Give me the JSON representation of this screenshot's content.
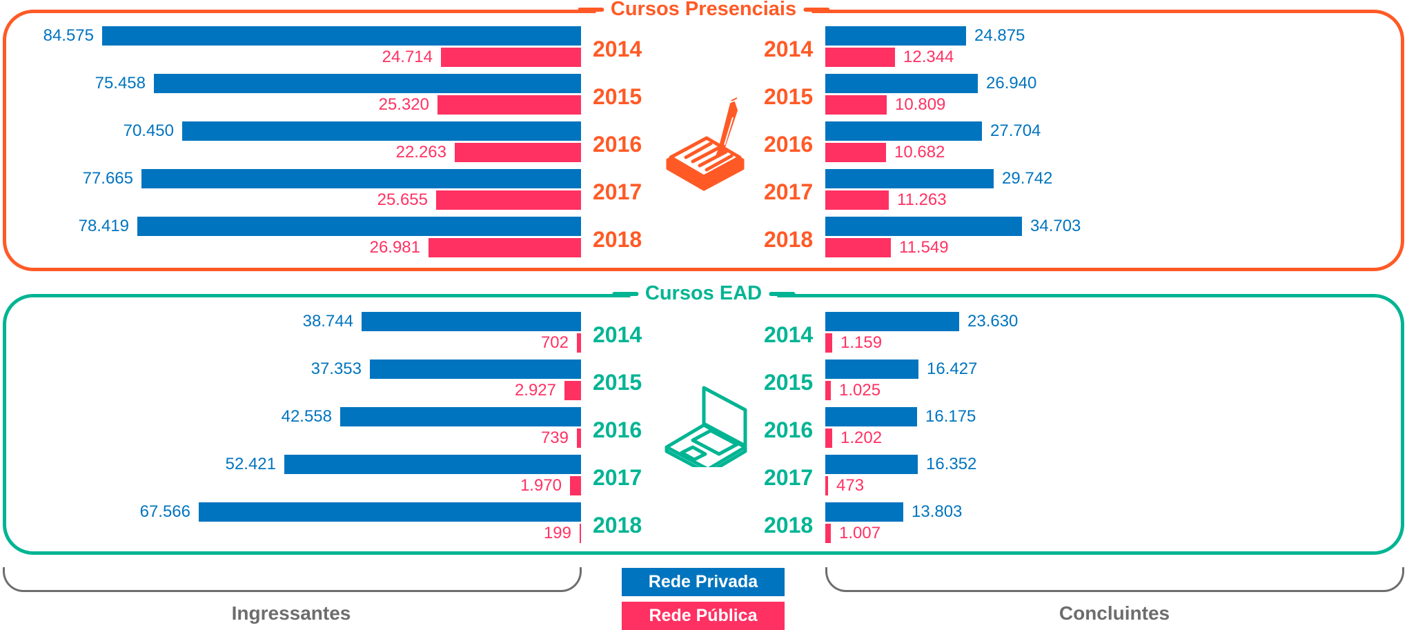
{
  "colors": {
    "privada": "#0074bf",
    "publica": "#ff3162",
    "presencial": "#ff5a26",
    "ead": "#00b493",
    "footer": "#6d6d6d"
  },
  "legend": {
    "privada_label": "Rede Privada",
    "publica_label": "Rede Pública"
  },
  "footer": {
    "left_label": "Ingressantes",
    "right_label": "Concluintes"
  },
  "chart_data": [
    {
      "type": "bar",
      "title": "Cursos Presenciais",
      "icon": "book-with-pen-icon",
      "categories": [
        "2014",
        "2015",
        "2016",
        "2017",
        "2018"
      ],
      "groups": [
        {
          "name": "Ingressantes",
          "series": [
            {
              "name": "Rede Privada",
              "values": [
                84575,
                75458,
                70450,
                77665,
                78419
              ],
              "labels": [
                "84.575",
                "75.458",
                "70.450",
                "77.665",
                "78.419"
              ]
            },
            {
              "name": "Rede Pública",
              "values": [
                24714,
                25320,
                22263,
                25655,
                26981
              ],
              "labels": [
                "24.714",
                "25.320",
                "22.263",
                "25.655",
                "26.981"
              ]
            }
          ]
        },
        {
          "name": "Concluintes",
          "series": [
            {
              "name": "Rede Privada",
              "values": [
                24875,
                26940,
                27704,
                29742,
                34703
              ],
              "labels": [
                "24.875",
                "26.940",
                "27.704",
                "29.742",
                "34.703"
              ]
            },
            {
              "name": "Rede Pública",
              "values": [
                12344,
                10809,
                10682,
                11263,
                11549
              ],
              "labels": [
                "12.344",
                "10.809",
                "10.682",
                "11.263",
                "11.549"
              ]
            }
          ]
        }
      ]
    },
    {
      "type": "bar",
      "title": "Cursos EAD",
      "icon": "laptop-icon",
      "categories": [
        "2014",
        "2015",
        "2016",
        "2017",
        "2018"
      ],
      "groups": [
        {
          "name": "Ingressantes",
          "series": [
            {
              "name": "Rede Privada",
              "values": [
                38744,
                37353,
                42558,
                52421,
                67566
              ],
              "labels": [
                "38.744",
                "37.353",
                "42.558",
                "52.421",
                "67.566"
              ]
            },
            {
              "name": "Rede Pública",
              "values": [
                702,
                2927,
                739,
                1970,
                199
              ],
              "labels": [
                "702",
                "2.927",
                "739",
                "1.970",
                "199"
              ]
            }
          ]
        },
        {
          "name": "Concluintes",
          "series": [
            {
              "name": "Rede Privada",
              "values": [
                23630,
                16427,
                16175,
                16352,
                13803
              ],
              "labels": [
                "23.630",
                "16.427",
                "16.175",
                "16.352",
                "13.803"
              ]
            },
            {
              "name": "Rede Pública",
              "values": [
                1159,
                1025,
                1202,
                473,
                1007
              ],
              "labels": [
                "1.159",
                "1.025",
                "1.202",
                "473",
                "1.007"
              ]
            }
          ]
        }
      ]
    }
  ]
}
